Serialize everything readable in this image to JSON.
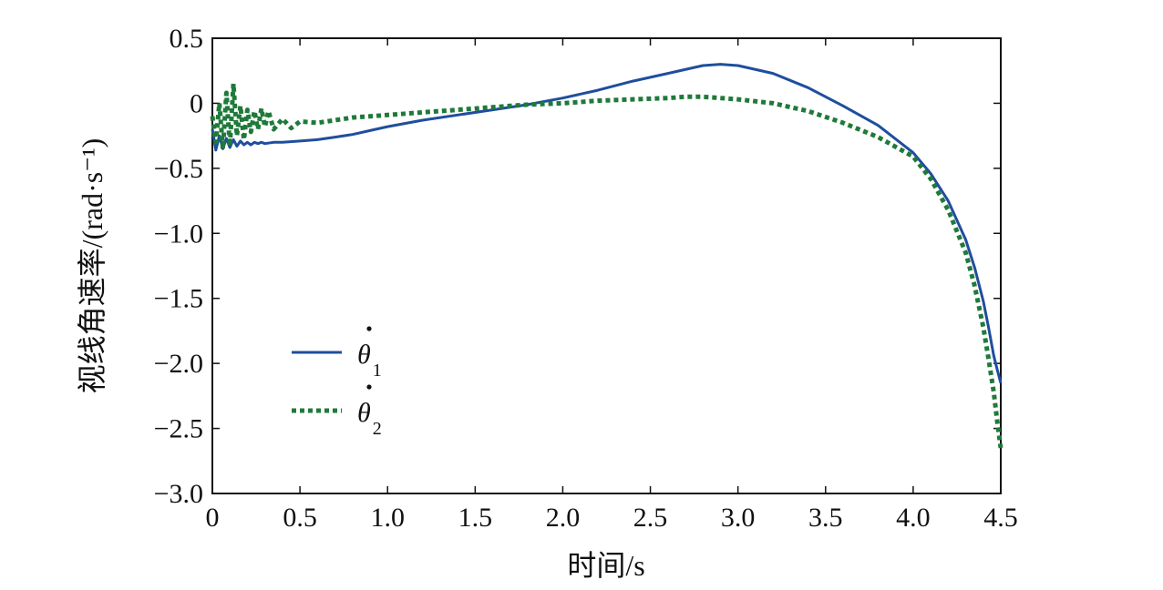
{
  "chart_data": {
    "type": "line",
    "title": "",
    "xlabel": "时间/s",
    "ylabel": "视线角速率/(rad·s⁻¹)",
    "xlim": [
      0,
      4.5
    ],
    "ylim": [
      -3.0,
      0.5
    ],
    "xticks": [
      0,
      0.5,
      1.0,
      1.5,
      2.0,
      2.5,
      3.0,
      3.5,
      4.0,
      4.5
    ],
    "xtick_labels": [
      "0",
      "0.5",
      "1.0",
      "1.5",
      "2.0",
      "2.5",
      "3.0",
      "3.5",
      "4.0",
      "4.5"
    ],
    "yticks": [
      0.5,
      0,
      -0.5,
      -1.0,
      -1.5,
      -2.0,
      -2.5,
      -3.0
    ],
    "ytick_labels": [
      "0.5",
      "0",
      "−0.5",
      "−1.0",
      "−1.5",
      "−2.0",
      "−2.5",
      "−3.0"
    ],
    "grid": false,
    "legend_position": "bottom-left",
    "series": [
      {
        "name": "θ̇1",
        "symbol": "θ",
        "subscript": "1",
        "color": "#1f4e9c",
        "style": "solid",
        "x": [
          0,
          0.02,
          0.04,
          0.06,
          0.08,
          0.1,
          0.12,
          0.14,
          0.16,
          0.18,
          0.2,
          0.22,
          0.24,
          0.26,
          0.28,
          0.3,
          0.35,
          0.4,
          0.5,
          0.6,
          0.7,
          0.8,
          0.9,
          1.0,
          1.2,
          1.4,
          1.6,
          1.8,
          2.0,
          2.2,
          2.4,
          2.6,
          2.8,
          2.9,
          3.0,
          3.2,
          3.4,
          3.6,
          3.8,
          4.0,
          4.1,
          4.2,
          4.3,
          4.35,
          4.4,
          4.43,
          4.46,
          4.48,
          4.5
        ],
        "y": [
          -0.2,
          -0.36,
          -0.25,
          -0.35,
          -0.27,
          -0.34,
          -0.28,
          -0.33,
          -0.29,
          -0.32,
          -0.3,
          -0.32,
          -0.3,
          -0.31,
          -0.3,
          -0.31,
          -0.3,
          -0.3,
          -0.29,
          -0.28,
          -0.26,
          -0.24,
          -0.21,
          -0.18,
          -0.13,
          -0.09,
          -0.05,
          -0.01,
          0.04,
          0.1,
          0.17,
          0.23,
          0.29,
          0.3,
          0.29,
          0.23,
          0.12,
          -0.02,
          -0.17,
          -0.38,
          -0.54,
          -0.75,
          -1.05,
          -1.26,
          -1.52,
          -1.72,
          -1.94,
          -2.05,
          -2.15
        ]
      },
      {
        "name": "θ̇2",
        "symbol": "θ",
        "subscript": "2",
        "color": "#1f7a3a",
        "style": "dotted",
        "x": [
          0,
          0.02,
          0.04,
          0.06,
          0.08,
          0.1,
          0.12,
          0.14,
          0.16,
          0.18,
          0.2,
          0.22,
          0.24,
          0.26,
          0.28,
          0.3,
          0.32,
          0.35,
          0.4,
          0.45,
          0.5,
          0.6,
          0.7,
          0.8,
          1.0,
          1.2,
          1.4,
          1.6,
          1.8,
          2.0,
          2.2,
          2.4,
          2.6,
          2.7,
          2.8,
          3.0,
          3.2,
          3.4,
          3.6,
          3.8,
          4.0,
          4.1,
          4.2,
          4.3,
          4.35,
          4.4,
          4.43,
          4.46,
          4.48,
          4.5
        ],
        "y": [
          -0.1,
          -0.3,
          0.0,
          -0.35,
          0.08,
          -0.33,
          0.15,
          -0.25,
          -0.02,
          -0.28,
          -0.05,
          -0.22,
          -0.06,
          -0.2,
          -0.04,
          -0.18,
          -0.06,
          -0.2,
          -0.12,
          -0.19,
          -0.14,
          -0.15,
          -0.13,
          -0.11,
          -0.09,
          -0.07,
          -0.05,
          -0.03,
          -0.01,
          0.0,
          0.02,
          0.03,
          0.04,
          0.05,
          0.05,
          0.03,
          0.0,
          -0.06,
          -0.15,
          -0.26,
          -0.41,
          -0.58,
          -0.82,
          -1.15,
          -1.4,
          -1.72,
          -1.96,
          -2.22,
          -2.45,
          -2.65
        ]
      }
    ]
  }
}
